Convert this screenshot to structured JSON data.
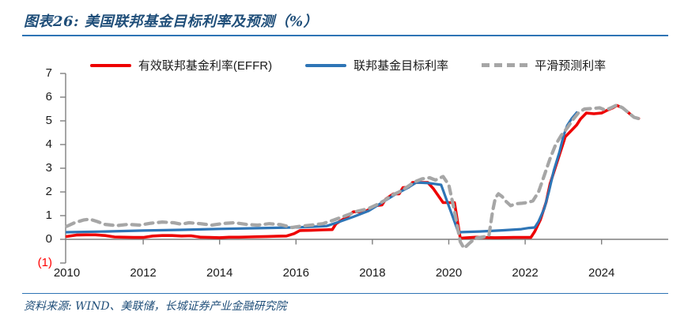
{
  "header": {
    "title": "图表26: 美国联邦基金目标利率及预测（%）"
  },
  "legend": {
    "items": [
      {
        "id": "effr",
        "label": "有效联邦基金利率(EFFR)",
        "color": "#EE0000",
        "style": "solid"
      },
      {
        "id": "target",
        "label": "联邦基金目标利率",
        "color": "#2E75B6",
        "style": "solid"
      },
      {
        "id": "forecast",
        "label": "平滑预测利率",
        "color": "#A6A6A6",
        "style": "dashed"
      }
    ]
  },
  "chart_data": {
    "type": "line",
    "title": "美国联邦基金目标利率及预测（%）",
    "xlabel": "",
    "ylabel": "%",
    "ylim": [
      -1,
      7
    ],
    "xlim": [
      2010,
      2025.8
    ],
    "grid": false,
    "legend_position": "top",
    "axis_color": "#7F7F7F",
    "y_axis": {
      "ticks": [
        7,
        6,
        5,
        4,
        3,
        2,
        1,
        0,
        -1
      ],
      "labels": [
        "7",
        "6",
        "5",
        "4",
        "3",
        "2",
        "1",
        "0",
        "(1)"
      ],
      "negative_label_color": "#FF0000"
    },
    "x_axis": {
      "ticks": [
        2010,
        2012,
        2014,
        2016,
        2018,
        2020,
        2022,
        2024
      ],
      "labels": [
        "2010",
        "2012",
        "2014",
        "2016",
        "2018",
        "2020",
        "2022",
        "2024"
      ]
    },
    "series": [
      {
        "id": "effr",
        "name": "有效联邦基金利率(EFFR)",
        "color": "#EE0000",
        "style": "solid",
        "points": [
          [
            2010.0,
            0.12
          ],
          [
            2010.25,
            0.18
          ],
          [
            2010.5,
            0.19
          ],
          [
            2010.75,
            0.19
          ],
          [
            2011.0,
            0.16
          ],
          [
            2011.25,
            0.1
          ],
          [
            2011.5,
            0.09
          ],
          [
            2011.75,
            0.08
          ],
          [
            2012.0,
            0.08
          ],
          [
            2012.25,
            0.14
          ],
          [
            2012.5,
            0.16
          ],
          [
            2012.75,
            0.16
          ],
          [
            2013.0,
            0.14
          ],
          [
            2013.25,
            0.15
          ],
          [
            2013.5,
            0.09
          ],
          [
            2013.75,
            0.08
          ],
          [
            2014.0,
            0.07
          ],
          [
            2014.25,
            0.09
          ],
          [
            2014.5,
            0.09
          ],
          [
            2014.75,
            0.1
          ],
          [
            2015.0,
            0.11
          ],
          [
            2015.25,
            0.12
          ],
          [
            2015.5,
            0.13
          ],
          [
            2015.75,
            0.14
          ],
          [
            2015.95,
            0.24
          ],
          [
            2016.1,
            0.37
          ],
          [
            2016.4,
            0.38
          ],
          [
            2016.7,
            0.4
          ],
          [
            2016.95,
            0.41
          ],
          [
            2017.05,
            0.66
          ],
          [
            2017.3,
            0.91
          ],
          [
            2017.5,
            1.16
          ],
          [
            2017.8,
            1.16
          ],
          [
            2017.95,
            1.3
          ],
          [
            2018.1,
            1.42
          ],
          [
            2018.25,
            1.45
          ],
          [
            2018.35,
            1.7
          ],
          [
            2018.55,
            1.92
          ],
          [
            2018.7,
            1.92
          ],
          [
            2018.8,
            2.18
          ],
          [
            2018.95,
            2.2
          ],
          [
            2019.05,
            2.4
          ],
          [
            2019.45,
            2.4
          ],
          [
            2019.6,
            2.13
          ],
          [
            2019.7,
            1.9
          ],
          [
            2019.85,
            1.55
          ],
          [
            2020.15,
            1.55
          ],
          [
            2020.3,
            0.05
          ],
          [
            2020.7,
            0.09
          ],
          [
            2021.2,
            0.07
          ],
          [
            2021.7,
            0.08
          ],
          [
            2022.15,
            0.08
          ],
          [
            2022.25,
            0.33
          ],
          [
            2022.4,
            0.83
          ],
          [
            2022.55,
            1.58
          ],
          [
            2022.65,
            2.33
          ],
          [
            2022.8,
            3.08
          ],
          [
            2022.95,
            3.83
          ],
          [
            2023.05,
            4.33
          ],
          [
            2023.2,
            4.58
          ],
          [
            2023.35,
            4.83
          ],
          [
            2023.45,
            5.08
          ],
          [
            2023.6,
            5.33
          ],
          [
            2023.8,
            5.3
          ],
          [
            2024.0,
            5.33
          ],
          [
            2024.15,
            5.45
          ],
          [
            2024.3,
            5.55
          ],
          [
            2024.4,
            5.65
          ],
          [
            2024.55,
            5.55
          ],
          [
            2024.7,
            5.35
          ],
          [
            2024.85,
            5.15
          ],
          [
            2024.97,
            5.1
          ]
        ]
      },
      {
        "id": "target",
        "name": "联邦基金目标利率",
        "color": "#2E75B6",
        "style": "solid",
        "points": [
          [
            2010.0,
            0.3
          ],
          [
            2011.0,
            0.33
          ],
          [
            2012.0,
            0.37
          ],
          [
            2013.0,
            0.4
          ],
          [
            2014.0,
            0.44
          ],
          [
            2015.0,
            0.47
          ],
          [
            2015.9,
            0.5
          ],
          [
            2016.3,
            0.52
          ],
          [
            2016.8,
            0.56
          ],
          [
            2017.1,
            0.72
          ],
          [
            2017.5,
            0.95
          ],
          [
            2017.9,
            1.2
          ],
          [
            2018.2,
            1.5
          ],
          [
            2018.6,
            1.9
          ],
          [
            2018.9,
            2.15
          ],
          [
            2019.15,
            2.4
          ],
          [
            2019.5,
            2.37
          ],
          [
            2019.8,
            2.3
          ],
          [
            2020.25,
            0.3
          ],
          [
            2020.8,
            0.33
          ],
          [
            2021.4,
            0.38
          ],
          [
            2021.9,
            0.43
          ],
          [
            2022.1,
            0.48
          ],
          [
            2022.25,
            0.5
          ],
          [
            2022.35,
            0.75
          ],
          [
            2022.5,
            1.3
          ],
          [
            2022.62,
            2.0
          ],
          [
            2022.75,
            2.9
          ],
          [
            2022.9,
            3.7
          ],
          [
            2023.0,
            4.35
          ],
          [
            2023.1,
            4.8
          ],
          [
            2023.22,
            5.1
          ],
          [
            2023.35,
            5.35
          ]
        ]
      },
      {
        "id": "forecast",
        "name": "平滑预测利率",
        "color": "#A6A6A6",
        "style": "dashed",
        "points": [
          [
            2010.0,
            0.55
          ],
          [
            2010.2,
            0.7
          ],
          [
            2010.45,
            0.82
          ],
          [
            2010.6,
            0.85
          ],
          [
            2010.8,
            0.75
          ],
          [
            2011.0,
            0.63
          ],
          [
            2011.3,
            0.58
          ],
          [
            2011.6,
            0.63
          ],
          [
            2011.9,
            0.6
          ],
          [
            2012.2,
            0.68
          ],
          [
            2012.5,
            0.73
          ],
          [
            2012.8,
            0.7
          ],
          [
            2013.0,
            0.64
          ],
          [
            2013.2,
            0.7
          ],
          [
            2013.5,
            0.66
          ],
          [
            2013.8,
            0.6
          ],
          [
            2014.1,
            0.67
          ],
          [
            2014.4,
            0.7
          ],
          [
            2014.7,
            0.63
          ],
          [
            2015.0,
            0.6
          ],
          [
            2015.3,
            0.66
          ],
          [
            2015.6,
            0.62
          ],
          [
            2015.9,
            0.5
          ],
          [
            2016.1,
            0.55
          ],
          [
            2016.4,
            0.6
          ],
          [
            2016.7,
            0.66
          ],
          [
            2017.0,
            0.82
          ],
          [
            2017.3,
            1.0
          ],
          [
            2017.6,
            1.18
          ],
          [
            2017.9,
            1.3
          ],
          [
            2018.1,
            1.45
          ],
          [
            2018.3,
            1.62
          ],
          [
            2018.5,
            1.85
          ],
          [
            2018.7,
            2.0
          ],
          [
            2018.9,
            2.2
          ],
          [
            2019.1,
            2.42
          ],
          [
            2019.3,
            2.55
          ],
          [
            2019.5,
            2.6
          ],
          [
            2019.65,
            2.5
          ],
          [
            2019.85,
            2.65
          ],
          [
            2020.0,
            2.3
          ],
          [
            2020.15,
            1.2
          ],
          [
            2020.3,
            -0.1
          ],
          [
            2020.4,
            -0.38
          ],
          [
            2020.55,
            -0.15
          ],
          [
            2020.7,
            0.05
          ],
          [
            2020.9,
            0.1
          ],
          [
            2021.05,
            0.15
          ],
          [
            2021.15,
            1.2
          ],
          [
            2021.22,
            1.75
          ],
          [
            2021.3,
            1.92
          ],
          [
            2021.4,
            1.8
          ],
          [
            2021.5,
            1.6
          ],
          [
            2021.62,
            1.42
          ],
          [
            2021.75,
            1.5
          ],
          [
            2021.9,
            1.52
          ],
          [
            2022.05,
            1.55
          ],
          [
            2022.2,
            1.62
          ],
          [
            2022.35,
            2.0
          ],
          [
            2022.5,
            2.7
          ],
          [
            2022.65,
            3.4
          ],
          [
            2022.8,
            4.0
          ],
          [
            2022.95,
            4.4
          ],
          [
            2023.1,
            4.7
          ],
          [
            2023.25,
            5.05
          ],
          [
            2023.4,
            5.35
          ],
          [
            2023.55,
            5.5
          ],
          [
            2023.75,
            5.52
          ],
          [
            2023.95,
            5.55
          ],
          [
            2024.1,
            5.45
          ],
          [
            2024.25,
            5.55
          ],
          [
            2024.4,
            5.67
          ],
          [
            2024.55,
            5.55
          ],
          [
            2024.7,
            5.35
          ],
          [
            2024.85,
            5.15
          ],
          [
            2025.0,
            5.08
          ]
        ]
      }
    ]
  },
  "footer": {
    "source": "资料来源: WIND、美联储，长城证券产业金融研究院"
  }
}
